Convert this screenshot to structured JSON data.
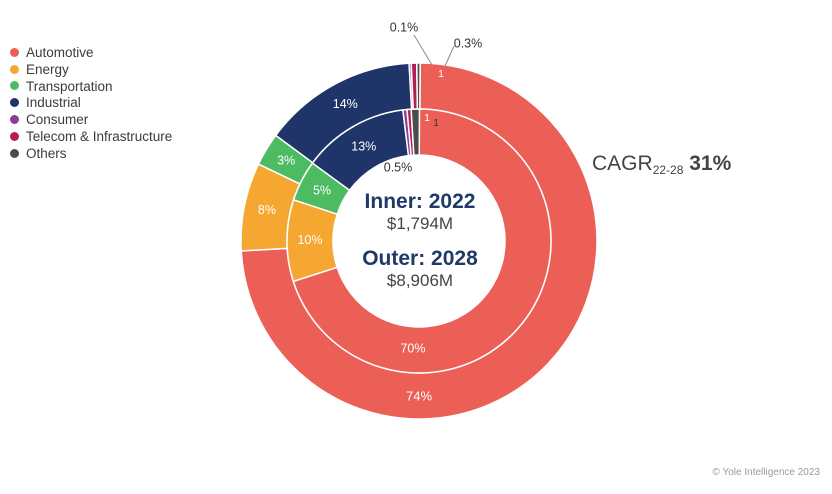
{
  "chart_data": {
    "type": "donut",
    "title": "",
    "categories": [
      "Automotive",
      "Energy",
      "Transportation",
      "Industrial",
      "Consumer",
      "Telecom & Infrastructure",
      "Others"
    ],
    "colors": [
      "#ec5f57",
      "#f5a732",
      "#4dbb62",
      "#1f3468",
      "#8a3f93",
      "#b51d55",
      "#4c4c4c"
    ],
    "series": [
      {
        "name": "Outer: 2028",
        "ring": "outer",
        "total": "$8,906M",
        "values": [
          74,
          8,
          3,
          14,
          0.1,
          0.5,
          0.3
        ],
        "labels": [
          "74%",
          "8%",
          "3%",
          "14%",
          "0.1%",
          "",
          "0.3%"
        ]
      },
      {
        "name": "Inner: 2022",
        "ring": "inner",
        "total": "$1,794M",
        "values": [
          70,
          10,
          5,
          13,
          0.5,
          0.5,
          1
        ],
        "labels": [
          "70%",
          "10%",
          "5%",
          "13%",
          "0.5%",
          "",
          "1"
        ]
      }
    ],
    "extra_labels": [
      "1",
      "1"
    ],
    "legend_position": "top-left",
    "grid": false
  },
  "center": {
    "inner_title": "Inner: 2022",
    "inner_value": "$1,794M",
    "outer_title": "Outer: 2028",
    "outer_value": "$8,906M"
  },
  "cagr": {
    "prefix": "CAGR",
    "subscript": "22-28",
    "value": "31%"
  },
  "copyright": "© Yole Intelligence 2023"
}
